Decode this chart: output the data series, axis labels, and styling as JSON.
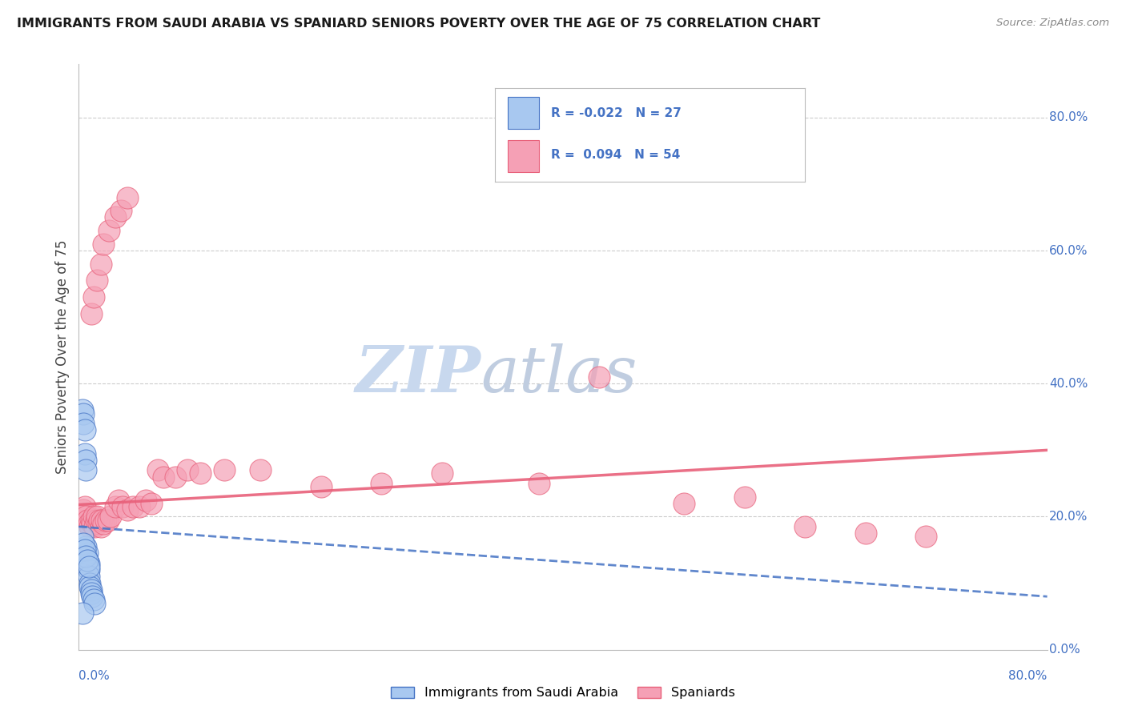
{
  "title": "IMMIGRANTS FROM SAUDI ARABIA VS SPANIARD SENIORS POVERTY OVER THE AGE OF 75 CORRELATION CHART",
  "source": "Source: ZipAtlas.com",
  "ylabel": "Seniors Poverty Over the Age of 75",
  "xlim": [
    0.0,
    0.8
  ],
  "ylim": [
    0.0,
    0.88
  ],
  "ytick_values": [
    0.0,
    0.2,
    0.4,
    0.6,
    0.8
  ],
  "gridline_y": [
    0.2,
    0.4,
    0.6,
    0.8
  ],
  "color_blue": "#A8C8F0",
  "color_pink": "#F5A0B5",
  "color_blue_dark": "#4472C4",
  "color_pink_dark": "#E8607A",
  "saudi_x": [
    0.003,
    0.004,
    0.004,
    0.005,
    0.005,
    0.006,
    0.006,
    0.006,
    0.007,
    0.007,
    0.008,
    0.008,
    0.008,
    0.009,
    0.009,
    0.01,
    0.01,
    0.011,
    0.012,
    0.013,
    0.003,
    0.004,
    0.005,
    0.006,
    0.007,
    0.008,
    0.003
  ],
  "saudi_y": [
    0.36,
    0.355,
    0.34,
    0.33,
    0.295,
    0.285,
    0.27,
    0.155,
    0.145,
    0.135,
    0.13,
    0.12,
    0.11,
    0.1,
    0.095,
    0.09,
    0.085,
    0.08,
    0.075,
    0.07,
    0.17,
    0.16,
    0.15,
    0.14,
    0.135,
    0.125,
    0.055
  ],
  "spaniard_x": [
    0.004,
    0.005,
    0.006,
    0.007,
    0.008,
    0.009,
    0.01,
    0.011,
    0.012,
    0.013,
    0.014,
    0.015,
    0.016,
    0.017,
    0.018,
    0.019,
    0.02,
    0.022,
    0.024,
    0.026,
    0.03,
    0.033,
    0.036,
    0.04,
    0.045,
    0.05,
    0.055,
    0.06,
    0.065,
    0.07,
    0.08,
    0.09,
    0.1,
    0.12,
    0.15,
    0.2,
    0.25,
    0.3,
    0.38,
    0.43,
    0.5,
    0.55,
    0.6,
    0.65,
    0.7,
    0.01,
    0.012,
    0.015,
    0.018,
    0.02,
    0.025,
    0.03,
    0.035,
    0.04
  ],
  "spaniard_y": [
    0.21,
    0.215,
    0.2,
    0.195,
    0.19,
    0.185,
    0.195,
    0.19,
    0.2,
    0.185,
    0.195,
    0.2,
    0.19,
    0.195,
    0.185,
    0.195,
    0.19,
    0.195,
    0.195,
    0.2,
    0.215,
    0.225,
    0.215,
    0.21,
    0.215,
    0.215,
    0.225,
    0.22,
    0.27,
    0.26,
    0.26,
    0.27,
    0.265,
    0.27,
    0.27,
    0.245,
    0.25,
    0.265,
    0.25,
    0.41,
    0.22,
    0.23,
    0.185,
    0.175,
    0.17,
    0.505,
    0.53,
    0.555,
    0.58,
    0.61,
    0.63,
    0.65,
    0.66,
    0.68
  ],
  "saudi_line_x": [
    0.0,
    0.8
  ],
  "saudi_line_y": [
    0.185,
    0.08
  ],
  "spaniard_line_x": [
    0.0,
    0.8
  ],
  "spaniard_line_y": [
    0.218,
    0.3
  ],
  "watermark_zip_color": "#C8D8EE",
  "watermark_atlas_color": "#C0CDE0"
}
